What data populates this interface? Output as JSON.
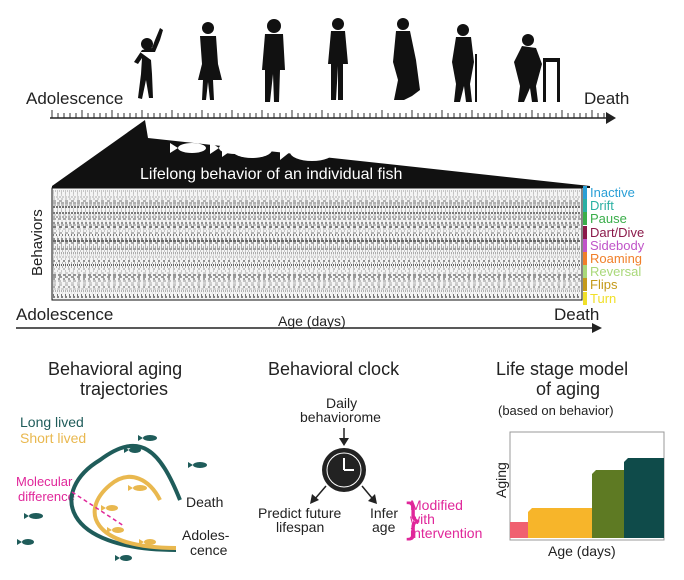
{
  "timeline": {
    "start_label": "Adolescence",
    "end_label": "Death",
    "silhouettes": [
      "child-silhouette",
      "teen-silhouette",
      "young-adult-silhouette",
      "adult-silhouette",
      "middle-aged-silhouette",
      "elderly-cane-silhouette",
      "elderly-walker-silhouette"
    ]
  },
  "fish_panel": {
    "title": "Lifelong behavior of an individual fish",
    "y_label": "Behaviors",
    "x_start": "Adolescence",
    "x_label": "Age (days)",
    "x_end": "Death",
    "legend": [
      {
        "label": "Inactive",
        "color": "#2a9fd6"
      },
      {
        "label": "Drift",
        "color": "#2bb0a3"
      },
      {
        "label": "Pause",
        "color": "#3aae4a"
      },
      {
        "label": "Dart/Dive",
        "color": "#8b1a4a"
      },
      {
        "label": "Sidebody",
        "color": "#c054c8"
      },
      {
        "label": "Roaming",
        "color": "#f07f2a"
      },
      {
        "label": "Reversal",
        "color": "#a9d879"
      },
      {
        "label": "Flips",
        "color": "#c49a1a"
      },
      {
        "label": "Turn",
        "color": "#f0e02a"
      }
    ]
  },
  "trajectories": {
    "title_line1": "Behavioral aging",
    "title_line2": "trajectories",
    "long_lived": "Long lived",
    "short_lived": "Short lived",
    "molecular_line1": "Molecular",
    "molecular_line2": "difference",
    "death": "Death",
    "adolescence_line1": "Adoles-",
    "adolescence_line2": "cence",
    "long_color": "#1f5c5a",
    "short_color": "#e9b84f",
    "magenta": "#e0279a"
  },
  "clock": {
    "title": "Behavioral clock",
    "input_line1": "Daily",
    "input_line2": "behaviorome",
    "predict_line1": "Predict future",
    "predict_line2": "lifespan",
    "infer_line1": "Infer",
    "infer_line2": "age",
    "modified_line1": "Modified",
    "modified_line2": "with",
    "modified_line3": "intervention"
  },
  "life_stage": {
    "title_line1": "Life stage model",
    "title_line2": "of aging",
    "subtitle": "(based on behavior)",
    "y_label": "Aging",
    "x_label": "Age (days)",
    "stages": [
      {
        "color": "#f06070"
      },
      {
        "color": "#f7b52a"
      },
      {
        "color": "#5e7a23"
      },
      {
        "color": "#0f4b4a"
      }
    ]
  }
}
